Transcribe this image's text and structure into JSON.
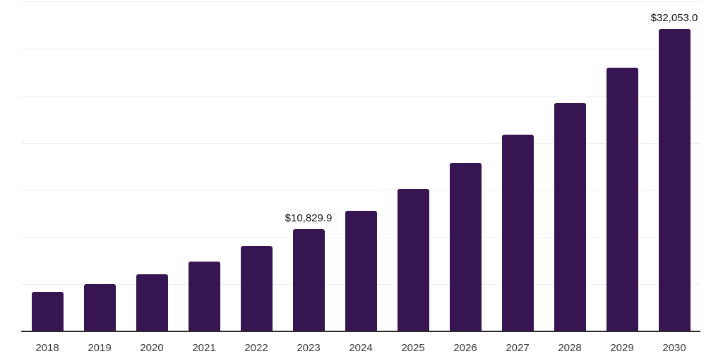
{
  "chart_data": {
    "type": "bar",
    "title": "",
    "xlabel": "",
    "ylabel": "",
    "categories": [
      "2018",
      "2019",
      "2020",
      "2021",
      "2022",
      "2023",
      "2024",
      "2025",
      "2026",
      "2027",
      "2028",
      "2029",
      "2030"
    ],
    "values": [
      4175,
      5000,
      6040,
      7380,
      9020,
      10829.9,
      12820,
      15130,
      17890,
      20870,
      24225,
      27950,
      32053.0
    ],
    "annotations": [
      {
        "category": "2023",
        "label": "$10,829.9"
      },
      {
        "category": "2030",
        "label": "$32,053.0"
      }
    ],
    "ylim": [
      0,
      35000
    ],
    "gridline_step": 5000,
    "grid": "horizontal",
    "legend_position": "none",
    "y_axis_tick_labels_visible": false,
    "bar_color": "#371452",
    "gridline_color": "#f0f0f1",
    "axis_line_color": "#2b2b2b",
    "x_tick_label_color": "#3a3a3a",
    "data_label_color": "#111111",
    "background_color": "#ffffff"
  }
}
